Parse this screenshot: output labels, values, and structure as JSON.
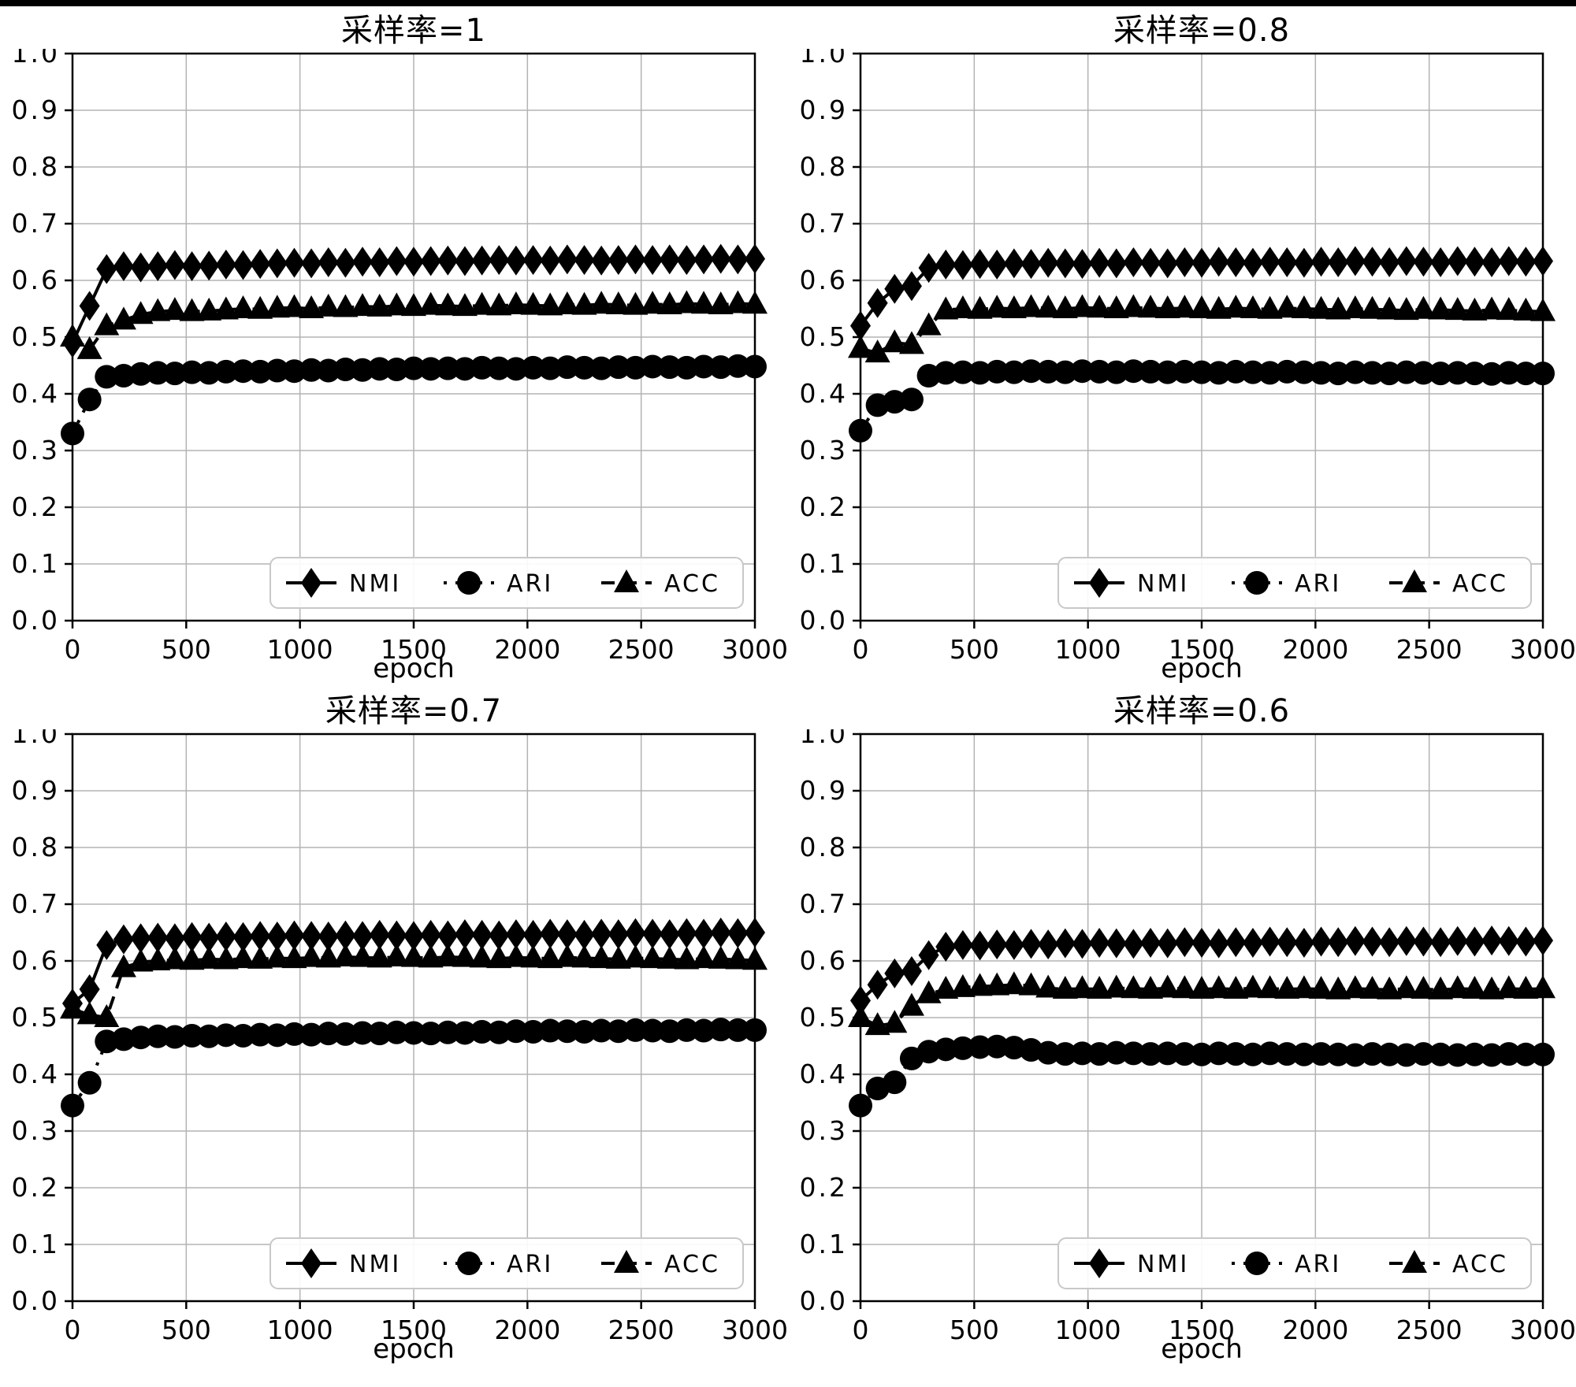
{
  "page": {
    "background": "#ffffff",
    "border_color": "#000000",
    "grid_color": "#b3b3b3",
    "series_color": "#000000",
    "legend_border_color": "#c8c8c8"
  },
  "chart_data": [
    {
      "type": "line",
      "title": "采样率=1",
      "xlabel": "epoch",
      "xlim": [
        0,
        3000
      ],
      "ylim": [
        0.0,
        1.0
      ],
      "xticks": [
        0,
        500,
        1000,
        1500,
        2000,
        2500,
        3000
      ],
      "yticks": [
        0.0,
        0.1,
        0.2,
        0.3,
        0.4,
        0.5,
        0.6,
        0.7,
        0.8,
        0.9,
        1.0
      ],
      "grid": true,
      "legend_position": "lower right",
      "x": [
        0,
        75,
        150,
        225,
        300,
        375,
        450,
        525,
        600,
        675,
        750,
        825,
        900,
        975,
        1050,
        1125,
        1200,
        1275,
        1350,
        1425,
        1500,
        1575,
        1650,
        1725,
        1800,
        1875,
        1950,
        2025,
        2100,
        2175,
        2250,
        2325,
        2400,
        2475,
        2550,
        2625,
        2700,
        2775,
        2850,
        2925,
        3000
      ],
      "series": [
        {
          "name": "NMI",
          "marker": "diamond",
          "line": "solid",
          "color": "#000000",
          "values": [
            0.49,
            0.555,
            0.62,
            0.625,
            0.623,
            0.625,
            0.627,
            0.625,
            0.626,
            0.628,
            0.627,
            0.629,
            0.63,
            0.631,
            0.63,
            0.632,
            0.631,
            0.633,
            0.632,
            0.634,
            0.633,
            0.634,
            0.635,
            0.634,
            0.635,
            0.636,
            0.635,
            0.636,
            0.635,
            0.637,
            0.636,
            0.635,
            0.636,
            0.637,
            0.636,
            0.637,
            0.636,
            0.637,
            0.638,
            0.637,
            0.638
          ]
        },
        {
          "name": "ARI",
          "marker": "circle",
          "line": "dotted",
          "color": "#000000",
          "values": [
            0.33,
            0.39,
            0.43,
            0.432,
            0.435,
            0.437,
            0.436,
            0.438,
            0.437,
            0.439,
            0.44,
            0.439,
            0.441,
            0.44,
            0.442,
            0.441,
            0.443,
            0.442,
            0.444,
            0.443,
            0.445,
            0.444,
            0.445,
            0.444,
            0.446,
            0.445,
            0.444,
            0.446,
            0.445,
            0.447,
            0.446,
            0.445,
            0.447,
            0.446,
            0.448,
            0.447,
            0.446,
            0.448,
            0.447,
            0.449,
            0.448
          ]
        },
        {
          "name": "ACC",
          "marker": "triangle",
          "line": "dashed",
          "color": "#000000",
          "values": [
            0.5,
            0.478,
            0.52,
            0.53,
            0.54,
            0.545,
            0.547,
            0.545,
            0.546,
            0.548,
            0.55,
            0.549,
            0.551,
            0.552,
            0.55,
            0.553,
            0.552,
            0.554,
            0.553,
            0.555,
            0.554,
            0.556,
            0.555,
            0.554,
            0.556,
            0.555,
            0.557,
            0.556,
            0.555,
            0.557,
            0.556,
            0.558,
            0.557,
            0.556,
            0.558,
            0.557,
            0.559,
            0.558,
            0.557,
            0.559,
            0.558
          ]
        }
      ]
    },
    {
      "type": "line",
      "title": "采样率=0.8",
      "xlabel": "epoch",
      "xlim": [
        0,
        3000
      ],
      "ylim": [
        0.0,
        1.0
      ],
      "xticks": [
        0,
        500,
        1000,
        1500,
        2000,
        2500,
        3000
      ],
      "yticks": [
        0.0,
        0.1,
        0.2,
        0.3,
        0.4,
        0.5,
        0.6,
        0.7,
        0.8,
        0.9,
        1.0
      ],
      "grid": true,
      "legend_position": "lower right",
      "x": [
        0,
        75,
        150,
        225,
        300,
        375,
        450,
        525,
        600,
        675,
        750,
        825,
        900,
        975,
        1050,
        1125,
        1200,
        1275,
        1350,
        1425,
        1500,
        1575,
        1650,
        1725,
        1800,
        1875,
        1950,
        2025,
        2100,
        2175,
        2250,
        2325,
        2400,
        2475,
        2550,
        2625,
        2700,
        2775,
        2850,
        2925,
        3000
      ],
      "series": [
        {
          "name": "NMI",
          "marker": "diamond",
          "line": "solid",
          "color": "#000000",
          "values": [
            0.52,
            0.56,
            0.585,
            0.59,
            0.622,
            0.628,
            0.627,
            0.629,
            0.628,
            0.63,
            0.629,
            0.631,
            0.63,
            0.629,
            0.631,
            0.63,
            0.632,
            0.631,
            0.63,
            0.632,
            0.631,
            0.633,
            0.632,
            0.631,
            0.633,
            0.632,
            0.631,
            0.633,
            0.632,
            0.634,
            0.633,
            0.632,
            0.634,
            0.633,
            0.632,
            0.634,
            0.633,
            0.632,
            0.634,
            0.633,
            0.634
          ]
        },
        {
          "name": "ARI",
          "marker": "circle",
          "line": "dotted",
          "color": "#000000",
          "values": [
            0.335,
            0.38,
            0.386,
            0.39,
            0.432,
            0.437,
            0.438,
            0.437,
            0.439,
            0.438,
            0.44,
            0.439,
            0.438,
            0.44,
            0.439,
            0.438,
            0.44,
            0.439,
            0.438,
            0.439,
            0.438,
            0.437,
            0.439,
            0.438,
            0.437,
            0.439,
            0.438,
            0.437,
            0.436,
            0.438,
            0.437,
            0.436,
            0.438,
            0.437,
            0.436,
            0.437,
            0.436,
            0.435,
            0.437,
            0.436,
            0.436
          ]
        },
        {
          "name": "ACC",
          "marker": "triangle",
          "line": "dashed",
          "color": "#000000",
          "values": [
            0.48,
            0.472,
            0.49,
            0.487,
            0.52,
            0.548,
            0.55,
            0.549,
            0.551,
            0.55,
            0.552,
            0.551,
            0.55,
            0.552,
            0.551,
            0.55,
            0.552,
            0.551,
            0.55,
            0.551,
            0.55,
            0.549,
            0.551,
            0.55,
            0.549,
            0.551,
            0.55,
            0.549,
            0.548,
            0.55,
            0.549,
            0.548,
            0.547,
            0.549,
            0.548,
            0.547,
            0.546,
            0.548,
            0.547,
            0.546,
            0.545
          ]
        }
      ]
    },
    {
      "type": "line",
      "title": "采样率=0.7",
      "xlabel": "epoch",
      "xlim": [
        0,
        3000
      ],
      "ylim": [
        0.0,
        1.0
      ],
      "xticks": [
        0,
        500,
        1000,
        1500,
        2000,
        2500,
        3000
      ],
      "yticks": [
        0.0,
        0.1,
        0.2,
        0.3,
        0.4,
        0.5,
        0.6,
        0.7,
        0.8,
        0.9,
        1.0
      ],
      "grid": true,
      "legend_position": "lower right",
      "x": [
        0,
        75,
        150,
        225,
        300,
        375,
        450,
        525,
        600,
        675,
        750,
        825,
        900,
        975,
        1050,
        1125,
        1200,
        1275,
        1350,
        1425,
        1500,
        1575,
        1650,
        1725,
        1800,
        1875,
        1950,
        2025,
        2100,
        2175,
        2250,
        2325,
        2400,
        2475,
        2550,
        2625,
        2700,
        2775,
        2850,
        2925,
        3000
      ],
      "series": [
        {
          "name": "NMI",
          "marker": "diamond",
          "line": "solid",
          "color": "#000000",
          "values": [
            0.525,
            0.55,
            0.628,
            0.638,
            0.64,
            0.641,
            0.64,
            0.642,
            0.641,
            0.643,
            0.642,
            0.644,
            0.643,
            0.645,
            0.644,
            0.643,
            0.645,
            0.644,
            0.646,
            0.645,
            0.644,
            0.646,
            0.645,
            0.647,
            0.646,
            0.645,
            0.647,
            0.646,
            0.648,
            0.647,
            0.646,
            0.648,
            0.647,
            0.649,
            0.648,
            0.647,
            0.649,
            0.648,
            0.65,
            0.649,
            0.65
          ]
        },
        {
          "name": "ARI",
          "marker": "circle",
          "line": "dotted",
          "color": "#000000",
          "values": [
            0.345,
            0.385,
            0.458,
            0.462,
            0.465,
            0.467,
            0.466,
            0.468,
            0.467,
            0.469,
            0.468,
            0.47,
            0.469,
            0.471,
            0.47,
            0.472,
            0.471,
            0.473,
            0.472,
            0.474,
            0.473,
            0.472,
            0.474,
            0.473,
            0.475,
            0.474,
            0.476,
            0.475,
            0.477,
            0.476,
            0.475,
            0.477,
            0.476,
            0.478,
            0.477,
            0.476,
            0.478,
            0.477,
            0.479,
            0.478,
            0.478
          ]
        },
        {
          "name": "ACC",
          "marker": "triangle",
          "line": "dashed",
          "color": "#000000",
          "values": [
            0.515,
            0.505,
            0.5,
            0.588,
            0.598,
            0.6,
            0.602,
            0.601,
            0.603,
            0.602,
            0.604,
            0.603,
            0.605,
            0.604,
            0.606,
            0.605,
            0.607,
            0.606,
            0.605,
            0.607,
            0.606,
            0.605,
            0.607,
            0.606,
            0.605,
            0.604,
            0.606,
            0.605,
            0.604,
            0.606,
            0.605,
            0.604,
            0.603,
            0.605,
            0.604,
            0.603,
            0.602,
            0.604,
            0.603,
            0.602,
            0.601
          ]
        }
      ]
    },
    {
      "type": "line",
      "title": "采样率=0.6",
      "xlabel": "epoch",
      "xlim": [
        0,
        3000
      ],
      "ylim": [
        0.0,
        1.0
      ],
      "xticks": [
        0,
        500,
        1000,
        1500,
        2000,
        2500,
        3000
      ],
      "yticks": [
        0.0,
        0.1,
        0.2,
        0.3,
        0.4,
        0.5,
        0.6,
        0.7,
        0.8,
        0.9,
        1.0
      ],
      "grid": true,
      "legend_position": "lower right",
      "x": [
        0,
        75,
        150,
        225,
        300,
        375,
        450,
        525,
        600,
        675,
        750,
        825,
        900,
        975,
        1050,
        1125,
        1200,
        1275,
        1350,
        1425,
        1500,
        1575,
        1650,
        1725,
        1800,
        1875,
        1950,
        2025,
        2100,
        2175,
        2250,
        2325,
        2400,
        2475,
        2550,
        2625,
        2700,
        2775,
        2850,
        2925,
        3000
      ],
      "series": [
        {
          "name": "NMI",
          "marker": "diamond",
          "line": "solid",
          "color": "#000000",
          "values": [
            0.53,
            0.558,
            0.578,
            0.582,
            0.61,
            0.625,
            0.628,
            0.627,
            0.629,
            0.628,
            0.63,
            0.629,
            0.631,
            0.63,
            0.632,
            0.631,
            0.63,
            0.632,
            0.631,
            0.633,
            0.632,
            0.631,
            0.633,
            0.632,
            0.634,
            0.633,
            0.632,
            0.634,
            0.633,
            0.635,
            0.634,
            0.633,
            0.635,
            0.634,
            0.633,
            0.635,
            0.634,
            0.636,
            0.635,
            0.634,
            0.636
          ]
        },
        {
          "name": "ARI",
          "marker": "circle",
          "line": "dotted",
          "color": "#000000",
          "values": [
            0.345,
            0.375,
            0.386,
            0.428,
            0.44,
            0.444,
            0.446,
            0.448,
            0.449,
            0.447,
            0.443,
            0.438,
            0.436,
            0.437,
            0.436,
            0.438,
            0.437,
            0.436,
            0.437,
            0.436,
            0.435,
            0.437,
            0.436,
            0.435,
            0.437,
            0.436,
            0.435,
            0.436,
            0.435,
            0.434,
            0.436,
            0.435,
            0.434,
            0.436,
            0.435,
            0.434,
            0.435,
            0.434,
            0.436,
            0.435,
            0.435
          ]
        },
        {
          "name": "ACC",
          "marker": "triangle",
          "line": "dashed",
          "color": "#000000",
          "values": [
            0.5,
            0.486,
            0.49,
            0.52,
            0.542,
            0.55,
            0.553,
            0.555,
            0.556,
            0.558,
            0.556,
            0.552,
            0.55,
            0.551,
            0.55,
            0.552,
            0.551,
            0.55,
            0.552,
            0.551,
            0.55,
            0.551,
            0.55,
            0.552,
            0.551,
            0.55,
            0.551,
            0.55,
            0.549,
            0.551,
            0.55,
            0.549,
            0.551,
            0.55,
            0.549,
            0.551,
            0.55,
            0.549,
            0.551,
            0.55,
            0.551
          ]
        }
      ]
    }
  ]
}
